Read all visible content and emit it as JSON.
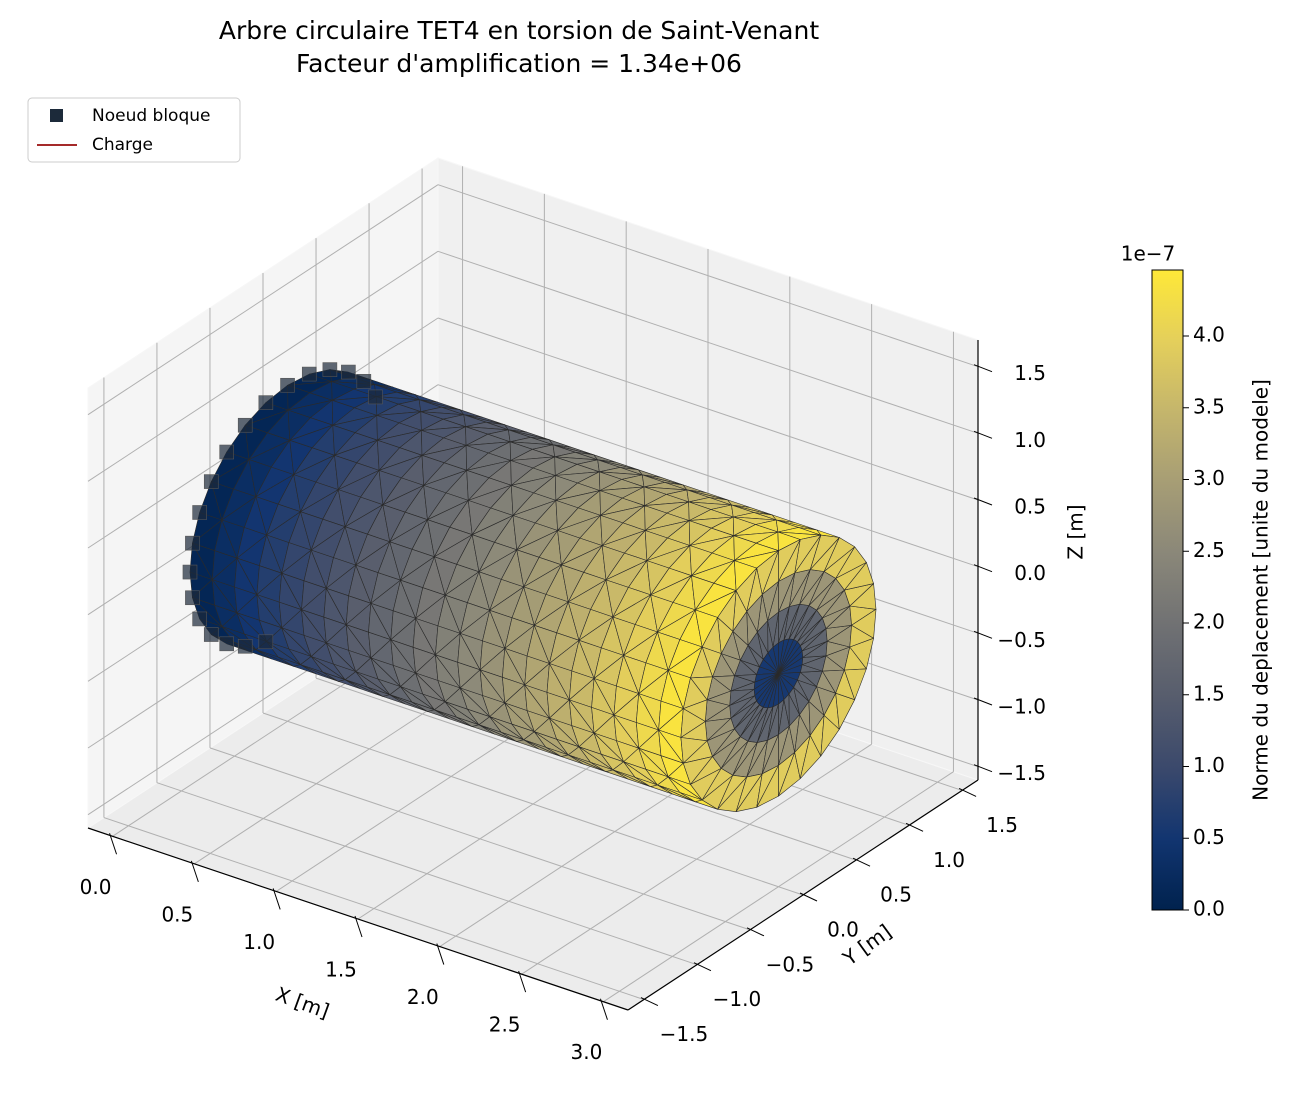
{
  "chart_data": {
    "type": "surface3d",
    "title": "Arbre circulaire TET4 en torsion de Saint-Venant",
    "subtitle": "Facteur d'amplification = 1.34e+06",
    "x_label": "X [m]",
    "y_label": "Y [m]",
    "z_label": "Z [m]",
    "xlim": [
      -0.15,
      3.15
    ],
    "xticks": [
      {
        "value": 0,
        "label": "0.0"
      },
      0.5,
      {
        "value": 1,
        "label": "1.0"
      },
      1.5,
      {
        "value": 2,
        "label": "2.0"
      },
      2.5,
      {
        "value": 3,
        "label": "3.0"
      }
    ],
    "ylim": [
      -1.65,
      1.65
    ],
    "yticks": [
      {
        "value": -1.5,
        "label": "−1.5"
      },
      {
        "value": -1,
        "label": "−1.0"
      },
      {
        "value": -0.5,
        "label": "−0.5"
      },
      {
        "value": 0,
        "label": "0.0"
      },
      0.5,
      {
        "value": 1,
        "label": "1.0"
      },
      1.5
    ],
    "zlim": [
      -1.6,
      1.7
    ],
    "zticks": [
      {
        "value": -1.5,
        "label": "−1.5"
      },
      {
        "value": -1,
        "label": "−1.0"
      },
      {
        "value": -0.5,
        "label": "−0.5"
      },
      {
        "value": 0,
        "label": "0.0"
      },
      0.5,
      {
        "value": 1,
        "label": "1.0"
      },
      1.5
    ],
    "grid": true,
    "legend": {
      "position": "upper left",
      "entries": [
        {
          "name": "Noeud bloque",
          "color": "#1c2a3a",
          "marker": "square"
        },
        {
          "name": "Charge",
          "color": "#a52a2a",
          "marker": "line"
        }
      ]
    },
    "colorbar": {
      "label": "Norme du deplacement [unite du modele]",
      "offset_label": "1e−7",
      "colormap": "cividis",
      "lim": [
        0,
        4.46e-07
      ],
      "ticks": [
        {
          "value": 0,
          "label": "0.0"
        },
        {
          "value": 5e-08,
          "label": "0.5"
        },
        {
          "value": 1e-07,
          "label": "1.0"
        },
        {
          "value": 1.5e-07,
          "label": "1.5"
        },
        {
          "value": 2e-07,
          "label": "2.0"
        },
        {
          "value": 2.5e-07,
          "label": "2.5"
        },
        {
          "value": 3e-07,
          "label": "3.0"
        },
        {
          "value": 3.5e-07,
          "label": "3.5"
        },
        {
          "value": 4e-07,
          "label": "4.0"
        }
      ]
    }
  }
}
